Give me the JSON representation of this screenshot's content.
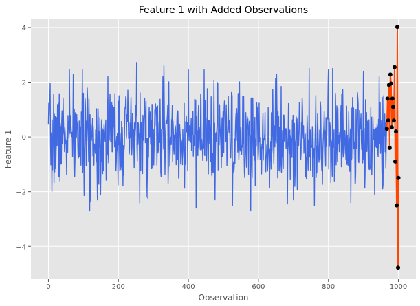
{
  "chart_data": {
    "type": "line",
    "title": "Feature 1 with Added Observations",
    "xlabel": "Observation",
    "ylabel": "Feature 1",
    "xlim": [
      -50,
      1050
    ],
    "ylim": [
      -5.2,
      4.3
    ],
    "xticks": [
      0,
      200,
      400,
      600,
      800,
      1000
    ],
    "yticks": [
      -4,
      -2,
      0,
      2,
      4
    ],
    "grid": true,
    "legend": "none",
    "series": [
      {
        "style": "line",
        "color": "#4169E1",
        "x_start": 0,
        "x_end": 966,
        "noise": {
          "points": 967,
          "mean": 0.0,
          "std": 1.0,
          "seed": 7
        },
        "x": [
          0,
          10,
          60,
          118,
          140,
          170,
          200,
          252,
          280,
          330,
          422,
          476,
          526,
          578,
          652,
          700,
          745,
          760,
          812,
          864,
          900,
          932,
          945,
          955,
          966
        ],
        "y": [
          0.45,
          -2.0,
          2.45,
          -2.7,
          -2.3,
          2.2,
          1.3,
          2.72,
          -2.2,
          2.6,
          -2.6,
          -2.3,
          -2.5,
          -2.7,
          2.3,
          -2.3,
          2.5,
          -2.5,
          2.5,
          -2.4,
          2.4,
          -2.1,
          2.2,
          -1.9,
          0.3
        ]
      },
      {
        "style": "line-markers",
        "color": "#FF4500",
        "marker_color": "#000000",
        "x": [
          967,
          969,
          971,
          973,
          975,
          977,
          979,
          981,
          983,
          985,
          987,
          989,
          991,
          993,
          995,
          997,
          999,
          1000
        ],
        "y": [
          0.3,
          1.4,
          0.6,
          1.9,
          -0.4,
          2.28,
          1.95,
          0.35,
          1.4,
          1.1,
          0.6,
          2.55,
          -0.9,
          0.2,
          -2.5,
          4.02,
          -4.78,
          -1.5
        ]
      }
    ]
  }
}
